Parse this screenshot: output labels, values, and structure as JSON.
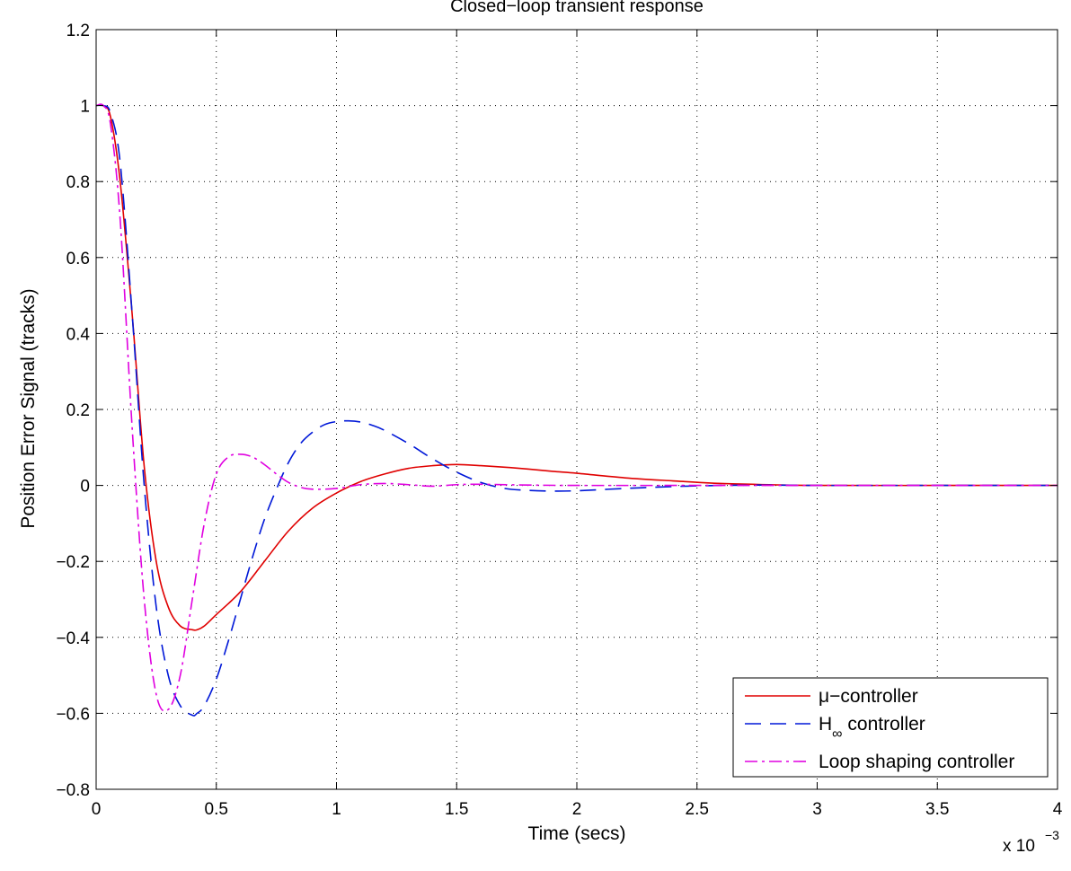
{
  "chart_data": {
    "type": "line",
    "title": "Closed−loop transient response",
    "xlabel": "Time (secs)",
    "ylabel": "Position Error Signal (tracks)",
    "x_multiplier_label": "x 10",
    "x_multiplier_exponent": "−3",
    "xlim": [
      0,
      4
    ],
    "ylim": [
      -0.8,
      1.2
    ],
    "xticks": [
      0,
      0.5,
      1,
      1.5,
      2,
      2.5,
      3,
      3.5,
      4
    ],
    "xtick_labels": [
      "0",
      "0.5",
      "1",
      "1.5",
      "2",
      "2.5",
      "3",
      "3.5",
      "4"
    ],
    "yticks": [
      -0.8,
      -0.6,
      -0.4,
      -0.2,
      0,
      0.2,
      0.4,
      0.6,
      0.8,
      1,
      1.2
    ],
    "ytick_labels": [
      "−0.8",
      "−0.6",
      "−0.4",
      "−0.2",
      "0",
      "0.2",
      "0.4",
      "0.6",
      "0.8",
      "1",
      "1.2"
    ],
    "grid": true,
    "legend_position": "bottom-right",
    "series": [
      {
        "name": "μ−controller",
        "legend_main": "μ−controller",
        "legend_sub": "",
        "legend_rest": "",
        "color": "#e00000",
        "dash": "solid",
        "x": [
          0,
          0.03,
          0.06,
          0.1,
          0.15,
          0.2,
          0.25,
          0.3,
          0.35,
          0.4,
          0.42,
          0.45,
          0.5,
          0.6,
          0.7,
          0.8,
          0.9,
          1.0,
          1.1,
          1.2,
          1.3,
          1.4,
          1.5,
          1.6,
          1.7,
          1.8,
          1.9,
          2.0,
          2.2,
          2.4,
          2.6,
          2.8,
          3.0,
          3.5,
          4.0
        ],
        "y": [
          1,
          1,
          0.97,
          0.8,
          0.45,
          0.05,
          -0.2,
          -0.32,
          -0.37,
          -0.38,
          -0.38,
          -0.37,
          -0.34,
          -0.28,
          -0.2,
          -0.12,
          -0.06,
          -0.02,
          0.01,
          0.03,
          0.045,
          0.052,
          0.055,
          0.052,
          0.048,
          0.043,
          0.037,
          0.032,
          0.02,
          0.012,
          0.005,
          0.002,
          0.0,
          0.0,
          0.0
        ]
      },
      {
        "name": "H∞ controller",
        "legend_main": "H",
        "legend_sub": "∞",
        "legend_rest": " controller",
        "color": "#0018d8",
        "dash": "18,10",
        "x": [
          0,
          0.03,
          0.06,
          0.1,
          0.15,
          0.2,
          0.25,
          0.3,
          0.35,
          0.4,
          0.42,
          0.45,
          0.5,
          0.55,
          0.6,
          0.65,
          0.7,
          0.75,
          0.8,
          0.85,
          0.9,
          0.95,
          1.0,
          1.05,
          1.1,
          1.15,
          1.2,
          1.3,
          1.4,
          1.5,
          1.6,
          1.7,
          1.8,
          1.9,
          2.0,
          2.2,
          2.4,
          2.6,
          2.8,
          3.0,
          3.5,
          4.0
        ],
        "y": [
          1,
          1,
          0.98,
          0.85,
          0.45,
          0.0,
          -0.32,
          -0.5,
          -0.58,
          -0.605,
          -0.6,
          -0.58,
          -0.51,
          -0.41,
          -0.3,
          -0.19,
          -0.09,
          -0.01,
          0.06,
          0.11,
          0.14,
          0.16,
          0.168,
          0.17,
          0.167,
          0.158,
          0.145,
          0.11,
          0.07,
          0.035,
          0.008,
          -0.008,
          -0.013,
          -0.015,
          -0.014,
          -0.008,
          -0.003,
          0.0,
          0.001,
          0.0,
          0.0,
          0.0
        ]
      },
      {
        "name": "Loop shaping controller",
        "legend_main": "Loop shaping controller",
        "legend_sub": "",
        "legend_rest": "",
        "color": "#e000e0",
        "dash": "14,5,3,5",
        "x": [
          0,
          0.03,
          0.06,
          0.1,
          0.15,
          0.2,
          0.25,
          0.3,
          0.35,
          0.4,
          0.45,
          0.5,
          0.55,
          0.6,
          0.65,
          0.7,
          0.75,
          0.8,
          0.85,
          0.9,
          1.0,
          1.1,
          1.2,
          1.3,
          1.4,
          1.5,
          1.6,
          1.8,
          2.0,
          2.5,
          3.0,
          3.5,
          4.0
        ],
        "y": [
          1,
          1,
          0.95,
          0.7,
          0.15,
          -0.3,
          -0.55,
          -0.59,
          -0.5,
          -0.3,
          -0.1,
          0.03,
          0.075,
          0.082,
          0.075,
          0.055,
          0.03,
          0.008,
          -0.005,
          -0.01,
          -0.008,
          0.002,
          0.005,
          0.002,
          -0.002,
          0.002,
          0.003,
          0.001,
          0.0,
          0.0,
          0.0,
          0.0,
          0.0
        ]
      }
    ]
  }
}
